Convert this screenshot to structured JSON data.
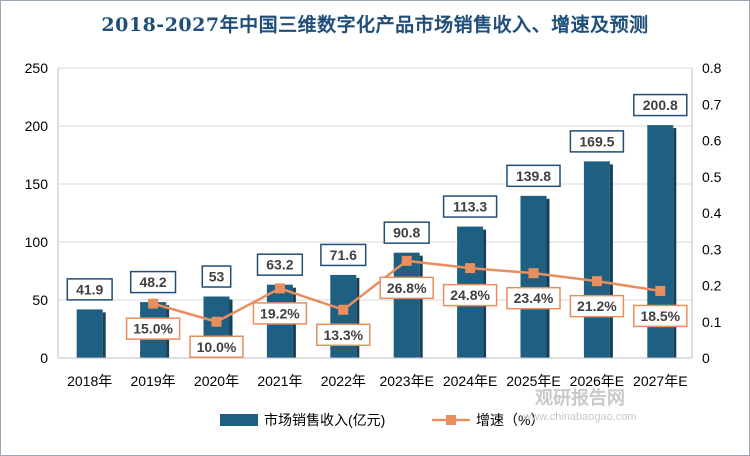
{
  "chart_data": {
    "type": "bar",
    "title": "2018-2027年中国三维数字化产品市场销售收入、增速及预测",
    "categories": [
      "2018年",
      "2019年",
      "2020年",
      "2021年",
      "2022年",
      "2023年E",
      "2024年E",
      "2025年E",
      "2026年E",
      "2027年E"
    ],
    "series": [
      {
        "name": "市场销售收入(亿元)",
        "type": "bar",
        "axis": "left",
        "values": [
          41.9,
          48.2,
          53,
          63.2,
          71.6,
          90.8,
          113.3,
          139.8,
          169.5,
          200.8
        ],
        "labels": [
          "41.9",
          "48.2",
          "53",
          "63.2",
          "71.6",
          "90.8",
          "113.3",
          "139.8",
          "169.5",
          "200.8"
        ],
        "color": "#1f5f82"
      },
      {
        "name": "增速（%）",
        "type": "line",
        "axis": "right",
        "values": [
          null,
          0.15,
          0.1,
          0.192,
          0.133,
          0.268,
          0.248,
          0.234,
          0.212,
          0.185
        ],
        "labels": [
          "",
          "15.0%",
          "10.0%",
          "19.2%",
          "13.3%",
          "26.8%",
          "24.8%",
          "23.4%",
          "21.2%",
          "18.5%"
        ],
        "color": "#e98e5f"
      }
    ],
    "y_left": {
      "min": 0,
      "max": 250,
      "ticks": [
        "0",
        "50",
        "100",
        "150",
        "200",
        "250"
      ]
    },
    "y_right": {
      "min": 0,
      "max": 0.8,
      "ticks": [
        "0",
        "0.1",
        "0.2",
        "0.3",
        "0.4",
        "0.5",
        "0.6",
        "0.7",
        "0.8"
      ]
    },
    "grid": true,
    "legend_position": "bottom"
  },
  "watermark": {
    "text": "观研报告网",
    "subtext": "www.chinabaogao.com"
  }
}
